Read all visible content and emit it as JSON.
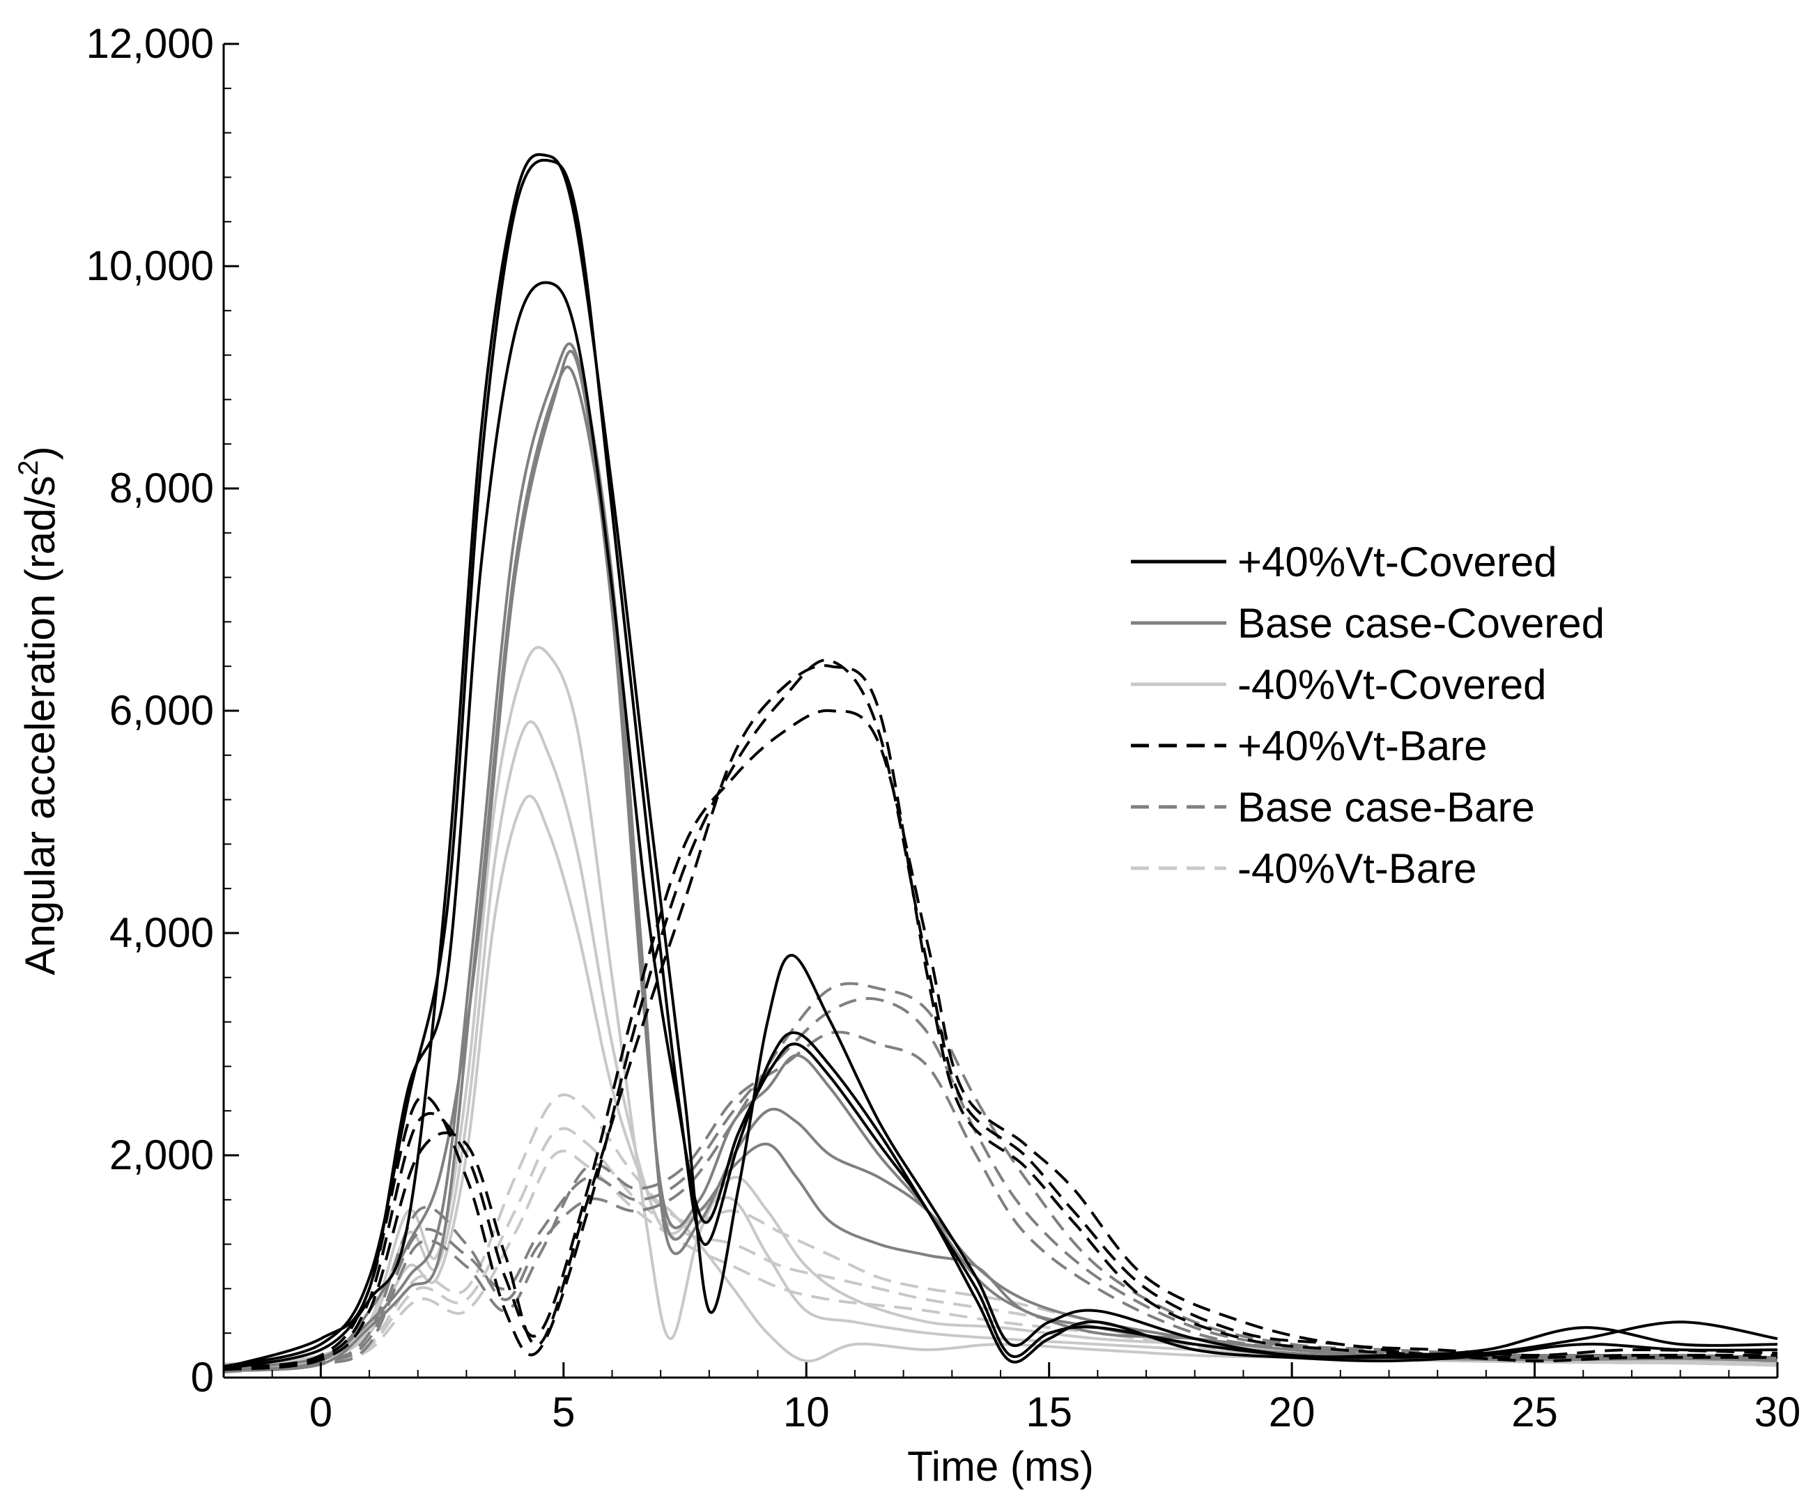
{
  "chart_data": {
    "type": "line",
    "title": "",
    "xlabel": "Time (ms)",
    "ylabel": "Angular acceleration (rad/s",
    "ylabel_superscript": "2",
    "ylabel_suffix": ")",
    "xlim": [
      -2,
      30
    ],
    "ylim": [
      0,
      12000
    ],
    "x_ticks": [
      0,
      5,
      10,
      15,
      20,
      25,
      30
    ],
    "x_tick_labels": [
      "0",
      "5",
      "10",
      "15",
      "20",
      "25",
      "30"
    ],
    "y_ticks": [
      0,
      2000,
      4000,
      6000,
      8000,
      10000,
      12000
    ],
    "y_tick_labels": [
      "0",
      "2,000",
      "4,000",
      "6,000",
      "8,000",
      "10,000",
      "12,000"
    ],
    "grid": false,
    "legend_position": "center-right",
    "legend": [
      {
        "label": "+40%Vt-Covered",
        "color": "#000000",
        "dash": "solid"
      },
      {
        "label": "Base case-Covered",
        "color": "#808080",
        "dash": "solid"
      },
      {
        "label": "-40%Vt-Covered",
        "color": "#c8c8c8",
        "dash": "solid"
      },
      {
        "label": "+40%Vt-Bare",
        "color": "#000000",
        "dash": "dashed"
      },
      {
        "label": "Base case-Bare",
        "color": "#808080",
        "dash": "dashed"
      },
      {
        "label": "-40%Vt-Bare",
        "color": "#c8c8c8",
        "dash": "dashed"
      }
    ],
    "series": [
      {
        "name": "+40%Vt-Covered (run 1)",
        "color": "#000000",
        "dash": "solid",
        "x": [
          -2,
          0,
          1,
          1.8,
          2.6,
          3.3,
          4.0,
          4.6,
          5.2,
          6.0,
          6.8,
          7.5,
          8.0,
          8.6,
          9.2,
          9.7,
          10.5,
          11.5,
          12.5,
          13.5,
          14.2,
          15,
          16,
          18,
          20,
          22,
          24,
          26,
          28,
          30
        ],
        "y": [
          80,
          250,
          700,
          1400,
          4500,
          8500,
          10600,
          11000,
          10500,
          8000,
          5000,
          2500,
          600,
          1700,
          3200,
          3800,
          3200,
          2300,
          1600,
          900,
          300,
          500,
          600,
          350,
          200,
          200,
          250,
          450,
          300,
          300
        ]
      },
      {
        "name": "+40%Vt-Covered (run 2)",
        "color": "#000000",
        "dash": "solid",
        "x": [
          -2,
          0,
          1,
          1.8,
          2.6,
          3.3,
          4.0,
          4.7,
          5.3,
          6.0,
          6.8,
          7.4,
          7.9,
          8.6,
          9.3,
          9.8,
          10.5,
          11.5,
          12.5,
          13.5,
          14.2,
          15,
          16,
          18,
          20,
          22,
          24,
          26,
          28,
          30
        ],
        "y": [
          100,
          300,
          900,
          2500,
          4200,
          8200,
          10500,
          10950,
          10400,
          7800,
          4600,
          2400,
          1200,
          2100,
          2900,
          3100,
          2800,
          2200,
          1500,
          800,
          200,
          400,
          450,
          300,
          200,
          180,
          220,
          350,
          500,
          350
        ]
      },
      {
        "name": "+40%Vt-Covered (run 3)",
        "color": "#000000",
        "dash": "solid",
        "x": [
          -2,
          0,
          1,
          1.8,
          2.6,
          3.3,
          4.0,
          4.7,
          5.3,
          6.0,
          6.7,
          7.3,
          7.9,
          8.6,
          9.3,
          9.8,
          10.5,
          11.5,
          12.5,
          13.5,
          14.2,
          15,
          16,
          18,
          20,
          22,
          24,
          26,
          28,
          30
        ],
        "y": [
          90,
          350,
          800,
          2600,
          3600,
          7300,
          9400,
          9850,
          9300,
          7100,
          4300,
          2600,
          1400,
          2200,
          2800,
          3000,
          2700,
          2100,
          1500,
          700,
          150,
          350,
          500,
          250,
          180,
          150,
          200,
          300,
          250,
          250
        ]
      },
      {
        "name": "Base case-Covered (run 1)",
        "color": "#808080",
        "dash": "solid",
        "x": [
          -2,
          0,
          1,
          1.8,
          2.5,
          3.2,
          4.0,
          4.8,
          5.3,
          6.0,
          6.6,
          7.1,
          7.8,
          8.5,
          9.2,
          9.8,
          10.5,
          11.5,
          12.5,
          13.5,
          14.5,
          16,
          18,
          20,
          22,
          25,
          28,
          30
        ],
        "y": [
          70,
          150,
          600,
          1200,
          1900,
          3800,
          7200,
          8800,
          9100,
          6900,
          3600,
          1500,
          1600,
          2300,
          2600,
          2900,
          2600,
          2000,
          1500,
          900,
          600,
          400,
          350,
          250,
          200,
          200,
          200,
          180
        ]
      },
      {
        "name": "Base case-Covered (run 2)",
        "color": "#808080",
        "dash": "solid",
        "x": [
          -2,
          0,
          1,
          1.8,
          2.5,
          3.2,
          4.0,
          4.8,
          5.3,
          6.0,
          6.6,
          7.1,
          7.8,
          8.5,
          9.2,
          9.8,
          10.5,
          11.5,
          12.5,
          13.5,
          14.5,
          16,
          18,
          20,
          22,
          25,
          28,
          30
        ],
        "y": [
          80,
          180,
          500,
          900,
          1500,
          4200,
          7600,
          9000,
          9150,
          7200,
          3900,
          1300,
          1400,
          2000,
          2400,
          2300,
          2000,
          1800,
          1500,
          1000,
          700,
          500,
          350,
          250,
          200,
          180,
          180,
          160
        ]
      },
      {
        "name": "Base case-Covered (run 3)",
        "color": "#808080",
        "dash": "solid",
        "x": [
          -2,
          0,
          1,
          1.8,
          2.5,
          3.2,
          4.0,
          4.8,
          5.3,
          6.0,
          6.6,
          7.1,
          7.8,
          8.5,
          9.2,
          9.8,
          10.5,
          11.5,
          12.5,
          13.5,
          14.5,
          16,
          18,
          20,
          22,
          25,
          28,
          30
        ],
        "y": [
          60,
          120,
          450,
          800,
          1200,
          3900,
          7300,
          8850,
          8900,
          7000,
          3700,
          1400,
          1500,
          1900,
          2100,
          1800,
          1400,
          1200,
          1100,
          1000,
          600,
          450,
          300,
          220,
          180,
          160,
          170,
          150
        ]
      },
      {
        "name": "-40%Vt-Covered (run 1)",
        "color": "#c8c8c8",
        "dash": "solid",
        "x": [
          -2,
          0,
          1,
          1.8,
          2.4,
          3.0,
          3.6,
          4.2,
          4.7,
          5.3,
          6.0,
          6.7,
          7.2,
          7.8,
          8.5,
          9.2,
          10.0,
          11.0,
          12.5,
          14,
          16,
          18,
          20,
          22,
          25,
          28,
          30
        ],
        "y": [
          120,
          200,
          500,
          1500,
          1100,
          2600,
          5200,
          6400,
          6500,
          5800,
          3600,
          1400,
          350,
          1300,
          1800,
          1500,
          1000,
          700,
          500,
          450,
          350,
          300,
          250,
          200,
          150,
          150,
          120
        ]
      },
      {
        "name": "-40%Vt-Covered (run 2)",
        "color": "#c8c8c8",
        "dash": "solid",
        "x": [
          -2,
          0,
          1,
          1.8,
          2.4,
          3.0,
          3.6,
          4.2,
          4.7,
          5.3,
          6.0,
          6.7,
          7.2,
          7.8,
          8.5,
          9.2,
          10.0,
          11.0,
          12.5,
          14,
          16,
          18,
          20,
          22,
          25,
          28,
          30
        ],
        "y": [
          100,
          180,
          450,
          1300,
          1000,
          2300,
          4700,
          5850,
          5600,
          4700,
          3000,
          1700,
          1300,
          1500,
          1600,
          1100,
          600,
          500,
          400,
          350,
          300,
          250,
          200,
          180,
          150,
          140,
          120
        ]
      },
      {
        "name": "-40%Vt-Covered (run 3)",
        "color": "#c8c8c8",
        "dash": "solid",
        "x": [
          -2,
          0,
          1,
          1.8,
          2.4,
          3.0,
          3.6,
          4.2,
          4.7,
          5.3,
          6.0,
          6.7,
          7.2,
          7.8,
          8.5,
          9.2,
          10.0,
          11.0,
          12.5,
          14,
          16,
          18,
          20,
          22,
          25,
          28,
          30
        ],
        "y": [
          90,
          160,
          400,
          1000,
          900,
          2000,
          4200,
          5200,
          4900,
          4000,
          2600,
          1700,
          1500,
          1200,
          800,
          400,
          150,
          300,
          250,
          300,
          250,
          200,
          180,
          160,
          140,
          130,
          110
        ]
      },
      {
        "name": "+40%Vt-Bare (run 1)",
        "color": "#000000",
        "dash": "dashed",
        "x": [
          -2,
          0,
          1,
          2,
          3,
          3.8,
          4.5,
          5.5,
          6.5,
          7.5,
          8.5,
          9.5,
          10.5,
          11.5,
          12.5,
          13.2,
          14.5,
          15.5,
          17,
          19,
          21,
          23,
          25,
          27,
          30
        ],
        "y": [
          90,
          200,
          800,
          2500,
          1800,
          600,
          250,
          1500,
          3200,
          4600,
          5500,
          6100,
          6450,
          5800,
          3700,
          2500,
          2000,
          1500,
          800,
          400,
          300,
          200,
          180,
          200,
          200
        ]
      },
      {
        "name": "+40%Vt-Bare (run 2)",
        "color": "#000000",
        "dash": "dashed",
        "x": [
          -2,
          0,
          1,
          2,
          3,
          3.8,
          4.5,
          5.5,
          6.5,
          7.5,
          8.5,
          9.5,
          10.5,
          11.5,
          12.5,
          13.2,
          14.5,
          15.5,
          17,
          19,
          21,
          23,
          25,
          27,
          30
        ],
        "y": [
          80,
          180,
          700,
          2300,
          2000,
          900,
          400,
          1700,
          3400,
          4800,
          5400,
          5800,
          6000,
          5700,
          3900,
          2600,
          2100,
          1700,
          900,
          500,
          300,
          250,
          200,
          250,
          220
        ]
      },
      {
        "name": "+40%Vt-Bare (run 3)",
        "color": "#000000",
        "dash": "dashed",
        "x": [
          -2,
          0,
          1,
          2,
          3,
          3.8,
          4.5,
          5.5,
          6.5,
          7.5,
          8.5,
          9.5,
          10.5,
          11.5,
          12.5,
          13.2,
          14.5,
          15.5,
          17,
          19,
          21,
          23,
          25,
          27,
          30
        ],
        "y": [
          70,
          160,
          600,
          2000,
          2100,
          1100,
          300,
          1600,
          3000,
          4300,
          5600,
          6200,
          6400,
          6000,
          3600,
          2400,
          1900,
          1400,
          700,
          350,
          250,
          200,
          150,
          180,
          180
        ]
      },
      {
        "name": "Base case-Bare (run 1)",
        "color": "#808080",
        "dash": "dashed",
        "x": [
          -2,
          0,
          1,
          2,
          3,
          3.8,
          4.5,
          5.5,
          6.5,
          7.5,
          8.5,
          9.5,
          10.5,
          11.5,
          12.5,
          13.5,
          14.5,
          16,
          18,
          20,
          22,
          25,
          28,
          30
        ],
        "y": [
          70,
          150,
          400,
          1500,
          1200,
          700,
          1200,
          1600,
          1500,
          1700,
          2300,
          3000,
          3500,
          3500,
          3300,
          2500,
          1800,
          1000,
          500,
          300,
          250,
          200,
          200,
          180
        ]
      },
      {
        "name": "Base case-Bare (run 2)",
        "color": "#808080",
        "dash": "dashed",
        "x": [
          -2,
          0,
          1,
          2,
          3,
          3.8,
          4.5,
          5.5,
          6.5,
          7.5,
          8.5,
          9.5,
          10.5,
          11.5,
          12.5,
          13.5,
          14.5,
          16,
          18,
          20,
          22,
          25,
          28,
          30
        ],
        "y": [
          60,
          140,
          350,
          1300,
          1100,
          800,
          1300,
          1800,
          1600,
          1800,
          2400,
          2900,
          3300,
          3400,
          3100,
          2200,
          1500,
          900,
          450,
          280,
          230,
          190,
          190,
          170
        ]
      },
      {
        "name": "Base case-Bare (run 3)",
        "color": "#808080",
        "dash": "dashed",
        "x": [
          -2,
          0,
          1,
          2,
          3,
          3.8,
          4.5,
          5.5,
          6.5,
          7.5,
          8.5,
          9.5,
          10.5,
          11.5,
          12.5,
          13.5,
          14.5,
          16,
          18,
          20,
          22,
          25,
          28,
          30
        ],
        "y": [
          50,
          120,
          300,
          1200,
          1000,
          600,
          1100,
          1900,
          1700,
          1900,
          2500,
          2800,
          3100,
          3000,
          2800,
          2000,
          1300,
          800,
          400,
          260,
          220,
          180,
          180,
          160
        ]
      },
      {
        "name": "-40%Vt-Bare (run 1)",
        "color": "#c8c8c8",
        "dash": "dashed",
        "x": [
          -2,
          0,
          1,
          2,
          3,
          4,
          4.8,
          5.5,
          6.5,
          7.5,
          8.5,
          9.5,
          10.5,
          11.5,
          12.5,
          14,
          16,
          18,
          20,
          22,
          25,
          28,
          30
        ],
        "y": [
          100,
          150,
          300,
          900,
          800,
          1800,
          2500,
          2400,
          1800,
          1400,
          1500,
          1300,
          1100,
          900,
          800,
          700,
          500,
          350,
          250,
          200,
          160,
          150,
          130
        ]
      },
      {
        "name": "-40%Vt-Bare (run 2)",
        "color": "#c8c8c8",
        "dash": "dashed",
        "x": [
          -2,
          0,
          1,
          2,
          3,
          4,
          4.8,
          5.5,
          6.5,
          7.5,
          8.5,
          9.5,
          10.5,
          11.5,
          12.5,
          14,
          16,
          18,
          20,
          22,
          25,
          28,
          30
        ],
        "y": [
          90,
          140,
          280,
          800,
          700,
          1500,
          2200,
          2100,
          1600,
          1300,
          1200,
          1000,
          900,
          800,
          700,
          600,
          450,
          300,
          220,
          180,
          150,
          140,
          120
        ]
      },
      {
        "name": "-40%Vt-Bare (run 3)",
        "color": "#c8c8c8",
        "dash": "dashed",
        "x": [
          -2,
          0,
          1,
          2,
          3,
          4,
          4.8,
          5.5,
          6.5,
          7.5,
          8.5,
          9.5,
          10.5,
          11.5,
          12.5,
          14,
          16,
          18,
          20,
          22,
          25,
          28,
          30
        ],
        "y": [
          80,
          130,
          250,
          700,
          600,
          1300,
          2000,
          1900,
          1500,
          1200,
          1000,
          800,
          700,
          650,
          600,
          500,
          400,
          280,
          200,
          170,
          140,
          130,
          110
        ]
      }
    ]
  }
}
